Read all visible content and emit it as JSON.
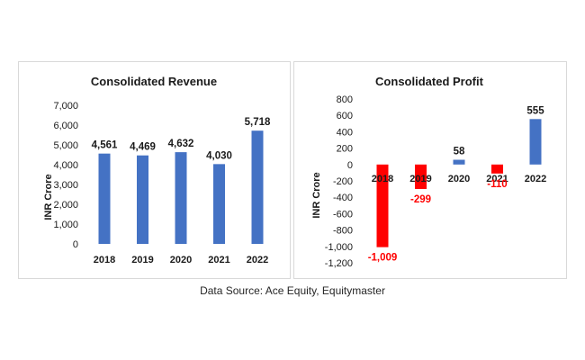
{
  "chart_data": [
    {
      "type": "bar",
      "title": "Consolidated Revenue",
      "ylabel": "INR Crore",
      "xlabel": "",
      "categories": [
        "2018",
        "2019",
        "2020",
        "2021",
        "2022"
      ],
      "values": [
        4561,
        4469,
        4632,
        4030,
        5718
      ],
      "data_labels": [
        "4,561",
        "4,469",
        "4,632",
        "4,030",
        "5,718"
      ],
      "ylim": [
        0,
        7000
      ],
      "yticks": [
        0,
        1000,
        2000,
        3000,
        4000,
        5000,
        6000,
        7000
      ],
      "ytick_labels": [
        "0",
        "1,000",
        "2,000",
        "3,000",
        "4,000",
        "5,000",
        "6,000",
        "7,000"
      ],
      "bar_colors": [
        "#4472c4",
        "#4472c4",
        "#4472c4",
        "#4472c4",
        "#4472c4"
      ],
      "label_colors": [
        "#1a1a1a",
        "#1a1a1a",
        "#1a1a1a",
        "#1a1a1a",
        "#1a1a1a"
      ],
      "grid": false,
      "legend": "none"
    },
    {
      "type": "bar",
      "title": "Consolidated Profit",
      "ylabel": "INR Crore",
      "xlabel": "",
      "categories": [
        "2018",
        "2019",
        "2020",
        "2021",
        "2022"
      ],
      "values": [
        -1009,
        -299,
        58,
        -110,
        555
      ],
      "data_labels": [
        "-1,009",
        "-299",
        "58",
        "-110",
        "555"
      ],
      "ylim": [
        -1200,
        800
      ],
      "yticks": [
        -1200,
        -1000,
        -800,
        -600,
        -400,
        -200,
        0,
        200,
        400,
        600,
        800
      ],
      "ytick_labels": [
        "-1,200",
        "-1,000",
        "-800",
        "-600",
        "-400",
        "-200",
        "0",
        "200",
        "400",
        "600",
        "800"
      ],
      "bar_colors": [
        "#ff0000",
        "#ff0000",
        "#4472c4",
        "#ff0000",
        "#4472c4"
      ],
      "label_colors": [
        "#ff0000",
        "#ff0000",
        "#1a1a1a",
        "#ff0000",
        "#1a1a1a"
      ],
      "grid": false,
      "legend": "none"
    }
  ],
  "source_text": "Data Source: Ace Equity, Equitymaster"
}
